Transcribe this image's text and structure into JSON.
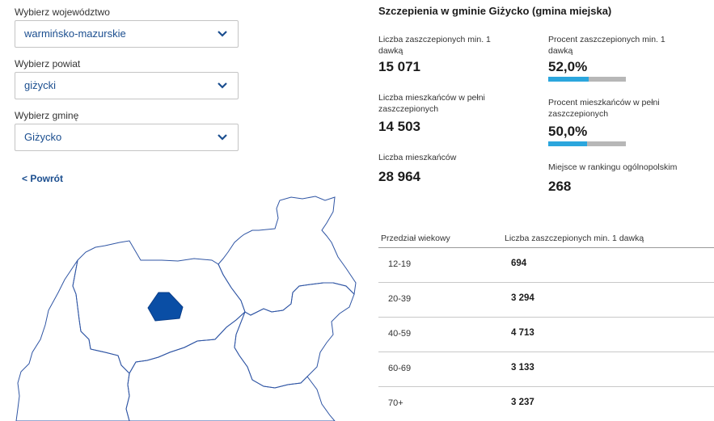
{
  "filters": {
    "voivodeship": {
      "label": "Wybierz województwo",
      "value": "warmińsko-mazurskie"
    },
    "county": {
      "label": "Wybierz powiat",
      "value": "giżycki"
    },
    "municipality": {
      "label": "Wybierz gminę",
      "value": "Giżycko"
    }
  },
  "back_label": "< Powrót",
  "colors": {
    "accent": "#1b4e8f",
    "highlight": "#0a4ea5",
    "bar_fill": "#2ba6dd",
    "bar_track": "#b7b7b7"
  },
  "stats": {
    "title": "Szczepienia w gminie Giżycko (gmina miejska)",
    "vaccinated_one_dose": {
      "label": "Liczba zaszczepionych min. 1 dawką",
      "value": "15 071"
    },
    "pct_one_dose": {
      "label": "Procent zaszczepionych min. 1 dawką",
      "value": "52,0%",
      "fraction": 0.52
    },
    "fully_vaccinated": {
      "label": "Liczba mieszkańców w pełni zaszczepionych",
      "value": "14 503"
    },
    "pct_fully": {
      "label": "Procent mieszkańców w pełni zaszczepionych",
      "value": "50,0%",
      "fraction": 0.5
    },
    "residents": {
      "label": "Liczba mieszkańców",
      "value": "28 964"
    },
    "ranking": {
      "label": "Miejsce w rankingu ogólnopolskim",
      "value": "268"
    }
  },
  "table": {
    "headers": [
      "Przedział wiekowy",
      "Liczba zaszczepionych min. 1 dawką"
    ],
    "rows": [
      {
        "age": "12-19",
        "value": "694"
      },
      {
        "age": "20-39",
        "value": "3 294"
      },
      {
        "age": "40-59",
        "value": "4 713"
      },
      {
        "age": "60-69",
        "value": "3 133"
      },
      {
        "age": "70+",
        "value": "3 237"
      }
    ]
  }
}
